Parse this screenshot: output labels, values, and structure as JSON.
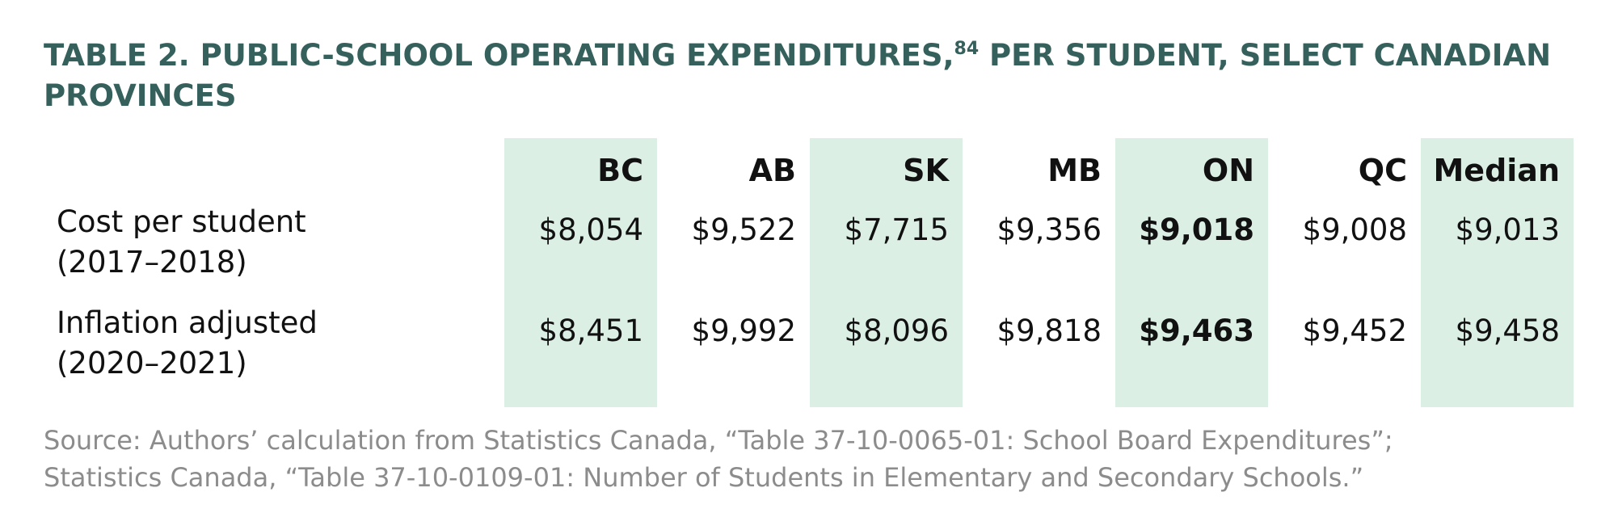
{
  "title": {
    "before": "TABLE 2. PUBLIC-SCHOOL OPERATING EXPENDITURES,",
    "note": "84",
    "after": " PER STUDENT, SELECT CANADIAN PROVINCES"
  },
  "table": {
    "columns": [
      "BC",
      "AB",
      "SK",
      "MB",
      "ON",
      "QC",
      "Median"
    ],
    "rows": [
      {
        "label": [
          "Cost per student",
          "(2017–2018)"
        ],
        "cells": [
          "$8,054",
          "$9,522",
          "$7,715",
          "$9,356",
          "$9,018",
          "$9,008",
          "$9,013"
        ]
      },
      {
        "label": [
          "Inflation adjusted",
          "(2020–2021)"
        ],
        "cells": [
          "$8,451",
          "$9,992",
          "$8,096",
          "$9,818",
          "$9,463",
          "$9,452",
          "$9,458"
        ]
      }
    ]
  },
  "source": [
    "Source: Authors’ calculation from Statistics Canada, “Table 37-10-0065-01: School Board Expenditures”;",
    "Statistics Canada, “Table 37-10-0109-01: Number of Students in Elementary and Secondary Schools.”"
  ]
}
